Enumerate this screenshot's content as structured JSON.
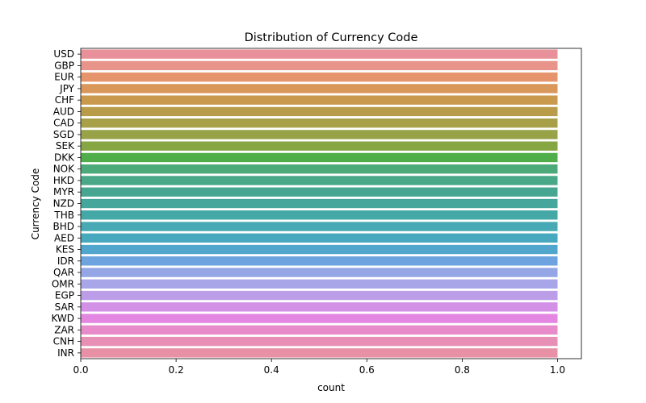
{
  "chart_data": {
    "type": "bar",
    "orientation": "horizontal",
    "title": "Distribution of Currency Code",
    "xlabel": "count",
    "ylabel": "Currency Code",
    "xlim": [
      0,
      1.05
    ],
    "x_ticks": [
      0.0,
      0.2,
      0.4,
      0.6,
      0.8,
      1.0
    ],
    "x_tick_labels": [
      "0.0",
      "0.2",
      "0.4",
      "0.6",
      "0.8",
      "1.0"
    ],
    "grid": false,
    "legend": "none",
    "categories": [
      "USD",
      "GBP",
      "EUR",
      "JPY",
      "CHF",
      "AUD",
      "CAD",
      "SGD",
      "SEK",
      "DKK",
      "NOK",
      "HKD",
      "MYR",
      "NZD",
      "THB",
      "BHD",
      "AED",
      "KES",
      "IDR",
      "QAR",
      "OMR",
      "EGP",
      "SAR",
      "KWD",
      "ZAR",
      "CNH",
      "INR"
    ],
    "values": [
      1,
      1,
      1,
      1,
      1,
      1,
      1,
      1,
      1,
      1,
      1,
      1,
      1,
      1,
      1,
      1,
      1,
      1,
      1,
      1,
      1,
      1,
      1,
      1,
      1,
      1,
      1
    ],
    "colors": [
      "#e8919a",
      "#e8948b",
      "#e5946b",
      "#d9975a",
      "#c99a4e",
      "#b89c4a",
      "#a8a048",
      "#98a247",
      "#86a644",
      "#4fae4a",
      "#4caa7a",
      "#49a887",
      "#47a692",
      "#45a79c",
      "#44a8a6",
      "#46a9b3",
      "#48a8be",
      "#50a6cc",
      "#6da4df",
      "#95a6e6",
      "#a9a5e9",
      "#bc9de8",
      "#d291e6",
      "#e487e2",
      "#e88bcb",
      "#e88fb5",
      "#e891a6"
    ]
  }
}
